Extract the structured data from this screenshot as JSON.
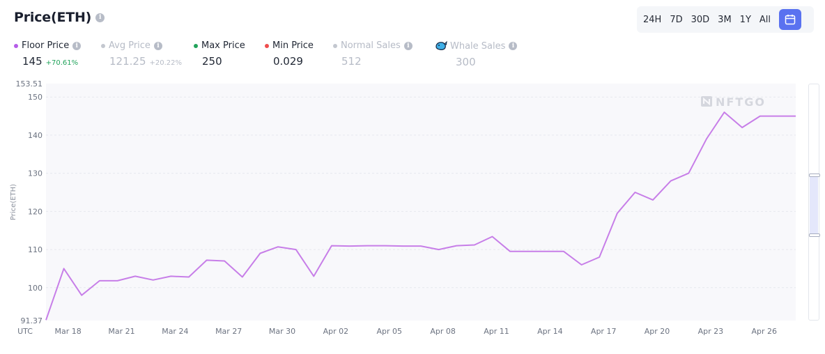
{
  "header": {
    "title": "Price(ETH)"
  },
  "ranges": [
    "24H",
    "7D",
    "30D",
    "3M",
    "1Y",
    "All"
  ],
  "legend": {
    "floor": {
      "label": "Floor Price",
      "value": "145",
      "change": "+70.61%",
      "color": "#b55ce8"
    },
    "avg": {
      "label": "Avg Price",
      "value": "121.25",
      "change": "+20.22%",
      "color": "#c3c7cf"
    },
    "max": {
      "label": "Max Price",
      "value": "250",
      "color": "#21a35b"
    },
    "min": {
      "label": "Min Price",
      "value": "0.029",
      "color": "#ef4d4d"
    },
    "normal": {
      "label": "Normal Sales",
      "value": "512",
      "color": "#c3c7cf"
    },
    "whale": {
      "label": "Whale Sales",
      "value": "300"
    }
  },
  "watermark": "NFTGO",
  "colors": {
    "line": "#c77ee8",
    "accent": "#5a72f0",
    "up": "#21a35b"
  },
  "chart_data": {
    "type": "line",
    "ylabel": "Price(ETH)",
    "xlabel": "UTC",
    "ylim": [
      91.37,
      153.51
    ],
    "yticks": [
      "153.51",
      "150",
      "140",
      "130",
      "120",
      "110",
      "100",
      "91.37"
    ],
    "xticks": [
      "Mar 18",
      "Mar 21",
      "Mar 24",
      "Mar 27",
      "Mar 30",
      "Apr 02",
      "Apr 05",
      "Apr 08",
      "Apr 11",
      "Apr 14",
      "Apr 17",
      "Apr 20",
      "Apr 23",
      "Apr 26"
    ],
    "grid": true,
    "series": [
      {
        "name": "Floor Price",
        "x": [
          "Mar 17",
          "Mar 18",
          "Mar 19",
          "Mar 20",
          "Mar 21",
          "Mar 22",
          "Mar 23",
          "Mar 24",
          "Mar 25",
          "Mar 26",
          "Mar 27",
          "Mar 28",
          "Mar 29",
          "Mar 30",
          "Mar 31",
          "Apr 01",
          "Apr 02",
          "Apr 03",
          "Apr 04",
          "Apr 05",
          "Apr 06",
          "Apr 07",
          "Apr 08",
          "Apr 09",
          "Apr 10",
          "Apr 11",
          "Apr 12",
          "Apr 13",
          "Apr 14",
          "Apr 15",
          "Apr 16",
          "Apr 17",
          "Apr 18",
          "Apr 19",
          "Apr 20",
          "Apr 21",
          "Apr 22",
          "Apr 23",
          "Apr 24",
          "Apr 25",
          "Apr 26",
          "Apr 27",
          "Apr 28"
        ],
        "values": [
          91.5,
          105,
          98,
          101.8,
          101.8,
          103,
          102,
          103,
          102.8,
          107.2,
          107,
          102.8,
          109,
          110.7,
          110,
          103,
          111,
          110.9,
          111,
          111,
          110.9,
          110.9,
          110,
          111,
          111.2,
          113.4,
          109.5,
          109.5,
          109.5,
          109.5,
          106,
          108,
          119.5,
          125,
          123,
          128,
          130,
          139,
          146,
          142,
          145,
          145,
          145
        ]
      }
    ]
  }
}
